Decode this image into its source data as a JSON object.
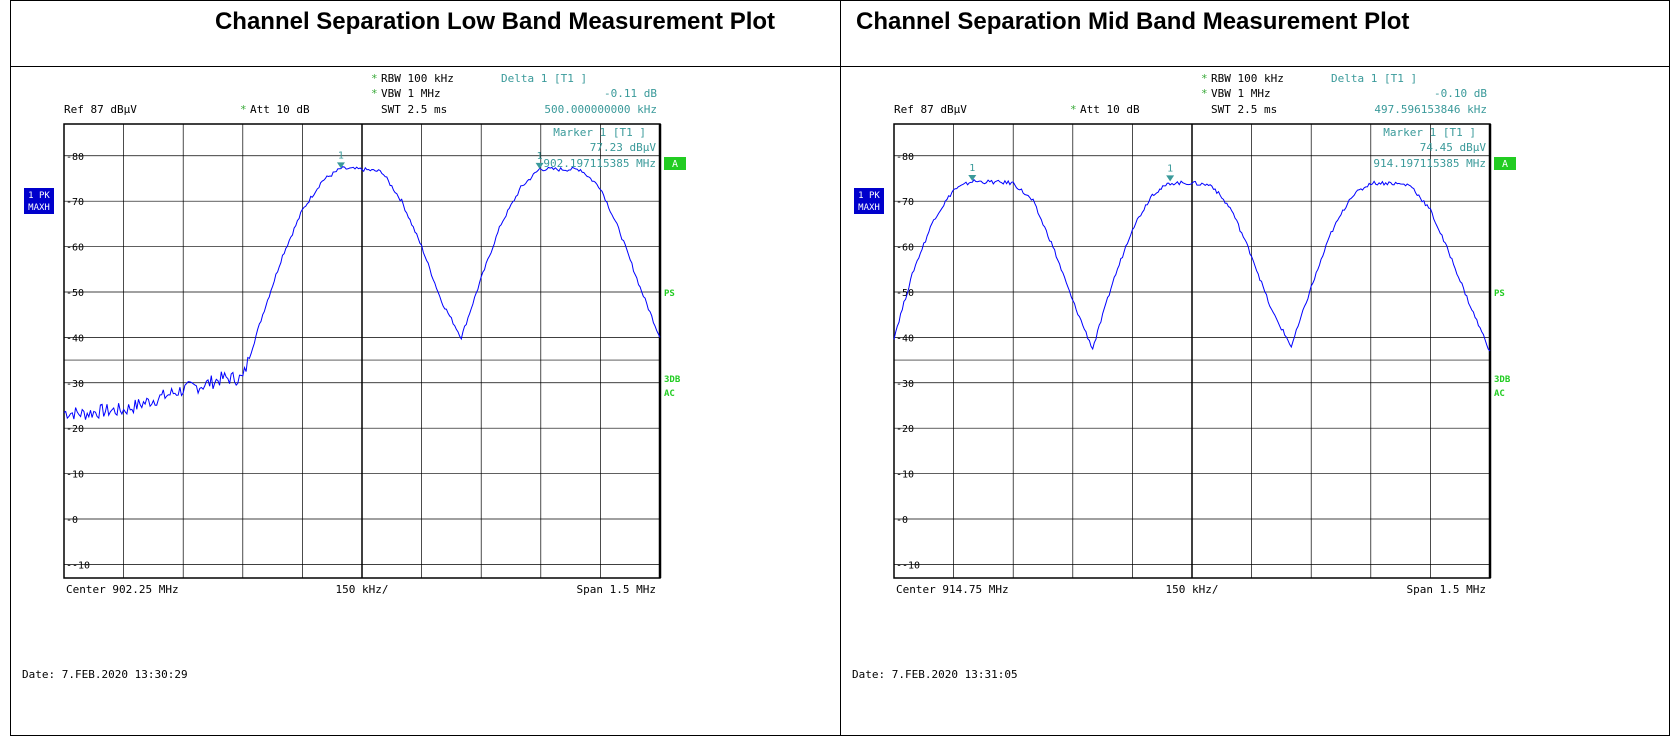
{
  "plots": [
    {
      "title": "Channel Separation Low Band Measurement Plot",
      "settings": {
        "rbw": "RBW 100 kHz",
        "vbw": "VBW 1 MHz",
        "att": "Att  10 dB",
        "swt": "SWT 2.5 ms",
        "ref": "Ref  87 dBµV",
        "star": "*"
      },
      "delta": {
        "label": "Delta 1 [T1 ]",
        "value": "-0.11 dB",
        "freq": "500.000000000 kHz"
      },
      "marker": {
        "label": "Marker 1 [T1 ]",
        "value": "77.23 dBµV",
        "freq": "902.197115385 MHz"
      },
      "marker_tags": [
        "1",
        "1"
      ],
      "side_tags": {
        "trace1": "1 PK",
        "trace2": "MAXH",
        "a": "A",
        "ps": "PS",
        "db3": "3DB",
        "ac": "AC"
      },
      "footer": {
        "center": "Center  902.25 MHz",
        "div": "150 kHz/",
        "span": "Span  1.5 MHz"
      },
      "date": "Date: 7.FEB.2020  13:30:29"
    },
    {
      "title": "Channel Separation Mid Band Measurement Plot",
      "settings": {
        "rbw": "RBW 100 kHz",
        "vbw": "VBW 1 MHz",
        "att": "Att  10 dB",
        "swt": "SWT 2.5 ms",
        "ref": "Ref  87 dBµV",
        "star": "*"
      },
      "delta": {
        "label": "Delta 1 [T1 ]",
        "value": "-0.10 dB",
        "freq": "497.596153846 kHz"
      },
      "marker": {
        "label": "Marker 1 [T1 ]",
        "value": "74.45 dBµV",
        "freq": "914.197115385 MHz"
      },
      "marker_tags": [
        "1",
        "1"
      ],
      "side_tags": {
        "trace1": "1 PK",
        "trace2": "MAXH",
        "a": "A",
        "ps": "PS",
        "db3": "3DB",
        "ac": "AC"
      },
      "footer": {
        "center": "Center  914.75 MHz",
        "div": "150 kHz/",
        "span": "Span  1.5 MHz"
      },
      "date": "Date: 7.FEB.2020  13:31:05"
    }
  ],
  "chart_data": [
    {
      "type": "line",
      "title": "Channel Separation Low Band Measurement Plot",
      "xlabel": "",
      "ylabel": "",
      "xlim": [
        901.5,
        903.0
      ],
      "ylim": [
        -13,
        87
      ],
      "yticks": [
        "80",
        "70",
        "60",
        "50",
        "40",
        "30",
        "20",
        "10",
        "0",
        "-10"
      ],
      "grid": true,
      "series": [
        {
          "color": "#0000ff",
          "x": [
            901.5,
            901.55,
            901.6,
            901.65,
            901.7,
            901.75,
            901.8,
            901.85,
            901.9,
            901.95,
            902.0,
            902.05,
            902.1,
            902.15,
            902.197,
            902.25,
            902.3,
            902.35,
            902.4,
            902.45,
            902.5,
            902.55,
            902.6,
            902.65,
            902.697,
            902.75,
            902.8,
            902.85,
            902.9,
            902.95,
            903.0
          ],
          "y": [
            23.5,
            23.2,
            23.8,
            24.0,
            25.5,
            27.0,
            28.5,
            29.5,
            31.0,
            31.0,
            45.0,
            58.0,
            68.0,
            74.5,
            77.2,
            77.0,
            76.5,
            70.0,
            60.0,
            48.0,
            40.0,
            53.0,
            65.0,
            73.0,
            77.1,
            77.0,
            77.0,
            73.0,
            63.0,
            51.0,
            40.0
          ]
        }
      ],
      "markers": [
        {
          "x": 902.197,
          "y": 77.23
        },
        {
          "x": 902.697,
          "y": 77.12
        }
      ],
      "reference_line_y": 35
    },
    {
      "type": "line",
      "title": "Channel Separation Mid Band Measurement Plot",
      "xlabel": "",
      "ylabel": "",
      "xlim": [
        914.0,
        915.5
      ],
      "ylim": [
        -13,
        87
      ],
      "yticks": [
        "80",
        "70",
        "60",
        "50",
        "40",
        "30",
        "20",
        "10",
        "0",
        "-10"
      ],
      "grid": true,
      "series": [
        {
          "color": "#0000ff",
          "x": [
            914.0,
            914.05,
            914.1,
            914.15,
            914.197,
            914.25,
            914.3,
            914.35,
            914.4,
            914.45,
            914.5,
            914.55,
            914.6,
            914.65,
            914.695,
            914.75,
            914.8,
            914.85,
            914.9,
            914.95,
            915.0,
            915.05,
            915.1,
            915.15,
            915.2,
            915.25,
            915.3,
            915.35,
            915.4,
            915.45,
            915.5
          ],
          "y": [
            40.0,
            55.0,
            66.0,
            72.5,
            74.4,
            74.2,
            74.0,
            70.0,
            60.0,
            48.0,
            37.5,
            52.0,
            64.0,
            71.5,
            74.0,
            74.0,
            73.5,
            68.0,
            58.0,
            46.0,
            38.0,
            51.0,
            63.0,
            71.0,
            74.0,
            74.0,
            73.5,
            68.0,
            58.0,
            47.0,
            37.0
          ]
        }
      ],
      "markers": [
        {
          "x": 914.197,
          "y": 74.45
        },
        {
          "x": 914.695,
          "y": 74.35
        }
      ],
      "reference_line_y": 35
    }
  ]
}
